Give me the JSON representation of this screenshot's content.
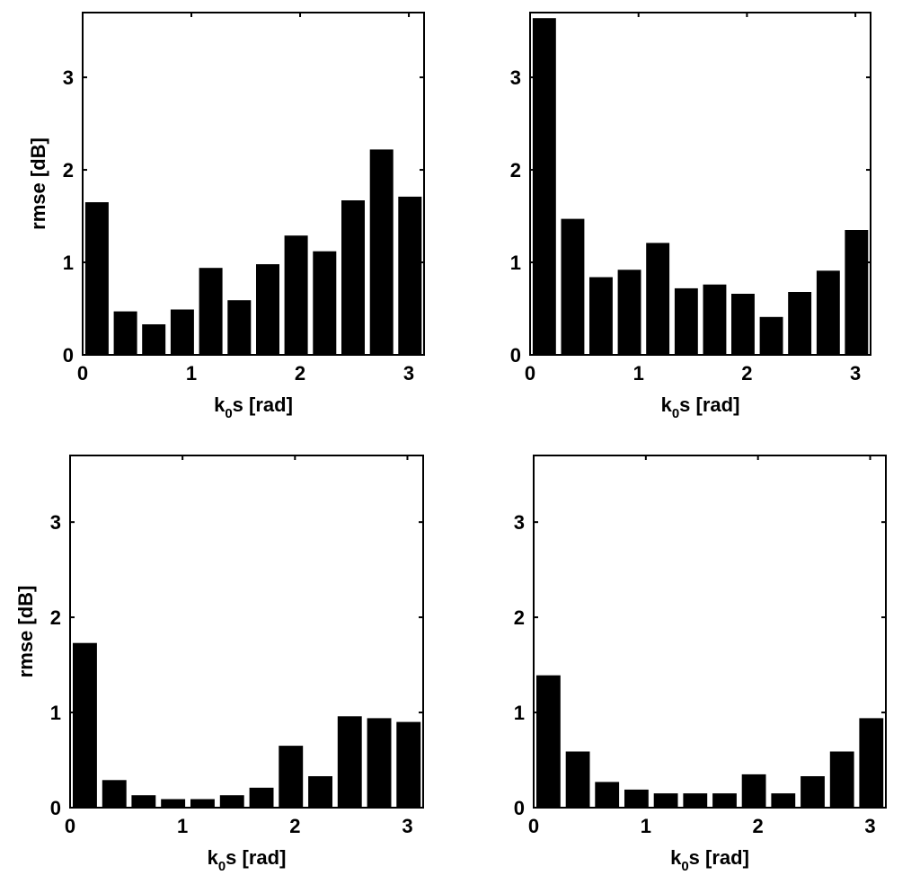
{
  "chart_data": [
    {
      "type": "bar",
      "x": [
        0.131,
        0.393,
        0.654,
        0.916,
        1.178,
        1.44,
        1.702,
        1.963,
        2.225,
        2.487,
        2.749,
        3.01
      ],
      "values": [
        1.65,
        0.47,
        0.33,
        0.49,
        0.94,
        0.59,
        0.98,
        1.29,
        1.12,
        1.67,
        2.22,
        1.71
      ],
      "xlabel": {
        "main": "k",
        "sub": "0",
        "rest": "s [rad]"
      },
      "ylabel": "rmse [dB]",
      "xlim": [
        0,
        3.14
      ],
      "ylim": [
        0,
        3.7
      ],
      "xticks": [
        "0",
        "1",
        "2",
        "3"
      ],
      "yticks": [
        "0",
        "1",
        "2",
        "3"
      ],
      "bar_color": "#000000",
      "grid": false
    },
    {
      "type": "bar",
      "x": [
        0.131,
        0.393,
        0.654,
        0.916,
        1.178,
        1.44,
        1.702,
        1.963,
        2.225,
        2.487,
        2.749,
        3.01
      ],
      "values": [
        3.64,
        1.47,
        0.84,
        0.92,
        1.21,
        0.72,
        0.76,
        0.66,
        0.41,
        0.68,
        0.91,
        1.35
      ],
      "xlabel": {
        "main": "k",
        "sub": "0",
        "rest": "s [rad]"
      },
      "ylabel": "",
      "xlim": [
        0,
        3.14
      ],
      "ylim": [
        0,
        3.7
      ],
      "xticks": [
        "0",
        "1",
        "2",
        "3"
      ],
      "yticks": [
        "0",
        "1",
        "2",
        "3"
      ],
      "bar_color": "#000000",
      "grid": false
    },
    {
      "type": "bar",
      "x": [
        0.131,
        0.393,
        0.654,
        0.916,
        1.178,
        1.44,
        1.702,
        1.963,
        2.225,
        2.487,
        2.749,
        3.01
      ],
      "values": [
        1.73,
        0.29,
        0.13,
        0.09,
        0.09,
        0.13,
        0.21,
        0.65,
        0.33,
        0.96,
        0.94,
        0.9
      ],
      "xlabel": {
        "main": "k",
        "sub": "0",
        "rest": "s [rad]"
      },
      "ylabel": "rmse [dB]",
      "xlim": [
        0,
        3.14
      ],
      "ylim": [
        0,
        3.7
      ],
      "xticks": [
        "0",
        "1",
        "2",
        "3"
      ],
      "yticks": [
        "0",
        "1",
        "2",
        "3"
      ],
      "bar_color": "#000000",
      "grid": false
    },
    {
      "type": "bar",
      "x": [
        0.131,
        0.393,
        0.654,
        0.916,
        1.178,
        1.44,
        1.702,
        1.963,
        2.225,
        2.487,
        2.749,
        3.01
      ],
      "values": [
        1.39,
        0.59,
        0.27,
        0.19,
        0.15,
        0.15,
        0.15,
        0.35,
        0.15,
        0.33,
        0.59,
        0.94
      ],
      "xlabel": {
        "main": "k",
        "sub": "0",
        "rest": "s [rad]"
      },
      "ylabel": "",
      "xlim": [
        0,
        3.14
      ],
      "ylim": [
        0,
        3.7
      ],
      "xticks": [
        "0",
        "1",
        "2",
        "3"
      ],
      "yticks": [
        "0",
        "1",
        "2",
        "3"
      ],
      "bar_color": "#000000",
      "grid": false
    }
  ]
}
